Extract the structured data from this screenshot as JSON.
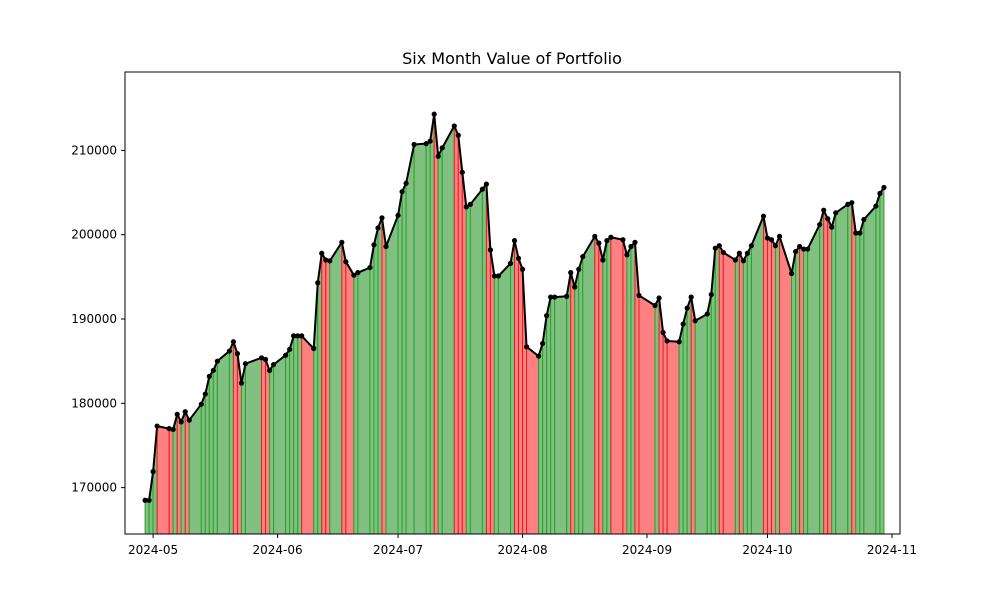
{
  "chart_data": {
    "type": "area",
    "title": "Six Month Value of Portfolio",
    "xlabel": "",
    "ylabel": "",
    "x_tick_labels": [
      "2024-05",
      "2024-06",
      "2024-07",
      "2024-08",
      "2024-09",
      "2024-10",
      "2024-11"
    ],
    "y_tick_labels": [
      "170000",
      "180000",
      "190000",
      "200000",
      "210000"
    ],
    "xlim": [
      "2024-04-24",
      "2024-11-03"
    ],
    "ylim": [
      164500,
      219300
    ],
    "grid": false,
    "legend": "none",
    "colors": {
      "line": "#000000",
      "up_fill": "#80c080",
      "up_edge": "#2ca02c",
      "down_fill": "#ff8080",
      "down_edge": "#e02020"
    },
    "series": [
      {
        "x": [
          "2024-04-29",
          "2024-04-30",
          "2024-05-01",
          "2024-05-02",
          "2024-05-05",
          "2024-05-06",
          "2024-05-07",
          "2024-05-08",
          "2024-05-09",
          "2024-05-10",
          "2024-05-13",
          "2024-05-14",
          "2024-05-15",
          "2024-05-16",
          "2024-05-17",
          "2024-05-20",
          "2024-05-21",
          "2024-05-22",
          "2024-05-23",
          "2024-05-24",
          "2024-05-28",
          "2024-05-29",
          "2024-05-30",
          "2024-05-31",
          "2024-06-03",
          "2024-06-04",
          "2024-06-05",
          "2024-06-06",
          "2024-06-07",
          "2024-06-10",
          "2024-06-11",
          "2024-06-12",
          "2024-06-13",
          "2024-06-14",
          "2024-06-17",
          "2024-06-18",
          "2024-06-20",
          "2024-06-21",
          "2024-06-24",
          "2024-06-25",
          "2024-06-26",
          "2024-06-27",
          "2024-06-28",
          "2024-07-01",
          "2024-07-02",
          "2024-07-03",
          "2024-07-05",
          "2024-07-08",
          "2024-07-09",
          "2024-07-10",
          "2024-07-11",
          "2024-07-12",
          "2024-07-15",
          "2024-07-16",
          "2024-07-17",
          "2024-07-18",
          "2024-07-19",
          "2024-07-22",
          "2024-07-23",
          "2024-07-24",
          "2024-07-25",
          "2024-07-26",
          "2024-07-29",
          "2024-07-30",
          "2024-07-31",
          "2024-08-01",
          "2024-08-02",
          "2024-08-05",
          "2024-08-06",
          "2024-08-07",
          "2024-08-08",
          "2024-08-09",
          "2024-08-12",
          "2024-08-13",
          "2024-08-14",
          "2024-08-15",
          "2024-08-16",
          "2024-08-19",
          "2024-08-20",
          "2024-08-21",
          "2024-08-22",
          "2024-08-23",
          "2024-08-26",
          "2024-08-27",
          "2024-08-28",
          "2024-08-29",
          "2024-08-30",
          "2024-09-03",
          "2024-09-04",
          "2024-09-05",
          "2024-09-06",
          "2024-09-09",
          "2024-09-10",
          "2024-09-11",
          "2024-09-12",
          "2024-09-13",
          "2024-09-16",
          "2024-09-17",
          "2024-09-18",
          "2024-09-19",
          "2024-09-20",
          "2024-09-23",
          "2024-09-24",
          "2024-09-25",
          "2024-09-26",
          "2024-09-27",
          "2024-09-30",
          "2024-10-01",
          "2024-10-02",
          "2024-10-03",
          "2024-10-04",
          "2024-10-07",
          "2024-10-08",
          "2024-10-09",
          "2024-10-10",
          "2024-10-11",
          "2024-10-14",
          "2024-10-15",
          "2024-10-16",
          "2024-10-17",
          "2024-10-18",
          "2024-10-21",
          "2024-10-22",
          "2024-10-23",
          "2024-10-24",
          "2024-10-25",
          "2024-10-28",
          "2024-10-29",
          "2024-10-30"
        ],
        "values": [
          168500,
          168500,
          171900,
          177300,
          177000,
          176900,
          178700,
          177800,
          179000,
          178000,
          179900,
          181100,
          183200,
          183900,
          185000,
          186200,
          187300,
          185900,
          182400,
          184700,
          185400,
          185200,
          183900,
          184600,
          185700,
          186400,
          188000,
          188000,
          188000,
          186500,
          194300,
          197800,
          197000,
          196900,
          199100,
          196800,
          195200,
          195500,
          196100,
          198800,
          200800,
          202000,
          198600,
          202300,
          205100,
          206100,
          210700,
          210800,
          211100,
          214300,
          209300,
          210300,
          212900,
          211800,
          207400,
          203300,
          203600,
          205400,
          206000,
          198200,
          195100,
          195100,
          196600,
          199300,
          197200,
          195900,
          186700,
          185600,
          187100,
          190400,
          192600,
          192600,
          192700,
          195500,
          193800,
          195900,
          197400,
          199800,
          199000,
          197000,
          199300,
          199700,
          199400,
          197600,
          198600,
          199100,
          192800,
          191600,
          192500,
          188400,
          187400,
          187300,
          189400,
          191300,
          192600,
          189800,
          190600,
          192900,
          198400,
          198700,
          197900,
          197000,
          197800,
          196900,
          197800,
          198700,
          202200,
          199600,
          199400,
          198700,
          199800,
          195400,
          198000,
          198600,
          198300,
          198300,
          201200,
          202900,
          201900,
          200900,
          202600,
          203600,
          203800,
          200200,
          200200,
          201800,
          203400,
          204900,
          205600
        ]
      }
    ]
  }
}
